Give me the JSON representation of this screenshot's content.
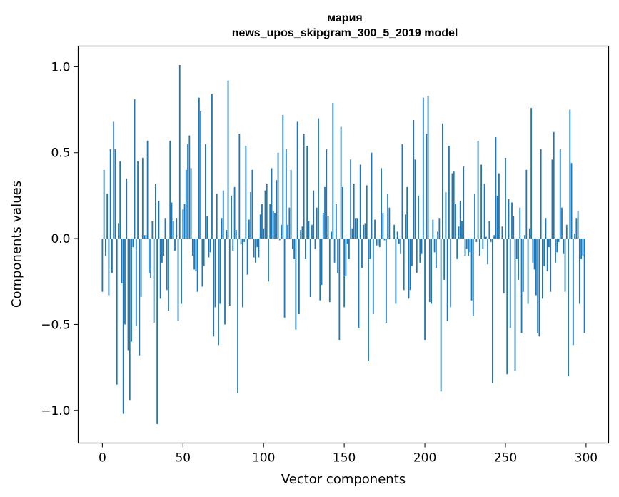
{
  "chart_data": {
    "type": "bar",
    "title": "мария",
    "subtitle": "news_upos_skipgram_300_5_2019 model",
    "xlabel": "Vector components",
    "ylabel": "Components values",
    "xlim": [
      -15,
      314
    ],
    "ylim": [
      -1.19,
      1.12
    ],
    "xticks": [
      0,
      50,
      100,
      150,
      200,
      250,
      300
    ],
    "yticks": [
      -1.0,
      -0.5,
      0.0,
      0.5,
      1.0
    ],
    "ytick_labels": [
      "−1.0",
      "−0.5",
      "0.0",
      "0.5",
      "1.0"
    ],
    "grid": false,
    "bar_color": "#1f77b4",
    "values": [
      -0.31,
      0.4,
      -0.1,
      0.26,
      -0.33,
      0.52,
      -0.2,
      0.68,
      0.52,
      -0.85,
      0.09,
      0.45,
      -0.26,
      -1.02,
      -0.5,
      0.35,
      -0.65,
      -0.94,
      -0.6,
      -0.05,
      0.81,
      -0.51,
      0.45,
      -0.68,
      -0.34,
      0.47,
      0.02,
      0.02,
      0.57,
      -0.2,
      -0.23,
      0.1,
      -0.49,
      0.32,
      -1.08,
      0.22,
      -0.35,
      -0.14,
      -0.1,
      0.12,
      -0.3,
      -0.42,
      0.57,
      0.21,
      0.1,
      -0.07,
      0.12,
      -0.48,
      1.01,
      -0.38,
      0.17,
      0.2,
      0.4,
      0.55,
      0.6,
      0.41,
      -0.1,
      -0.18,
      -0.19,
      -0.31,
      0.82,
      0.74,
      -0.28,
      -0.16,
      0.55,
      0.13,
      -0.11,
      -0.08,
      0.84,
      -0.57,
      -0.4,
      0.26,
      -0.62,
      -0.38,
      0.12,
      0.28,
      -0.5,
      0.05,
      0.92,
      -0.39,
      0.25,
      -0.07,
      0.3,
      0.05,
      -0.9,
      0.61,
      -0.03,
      -0.4,
      -0.02,
      0.54,
      -0.21,
      0.11,
      0.27,
      0.4,
      -0.11,
      -0.14,
      -0.05,
      -0.11,
      0.14,
      0.2,
      0.06,
      0.28,
      0.32,
      -0.25,
      0.2,
      0.41,
      0.16,
      0.15,
      0.34,
      0.5,
      -0.01,
      0.08,
      0.72,
      -0.46,
      0.52,
      0.08,
      0.18,
      0.4,
      -0.06,
      -0.12,
      -0.53,
      0.68,
      -0.44,
      0.05,
      0.07,
      0.61,
      -0.12,
      0.54,
      0.1,
      -0.34,
      0.08,
      0.28,
      -0.06,
      0.18,
      0.7,
      -0.36,
      -0.27,
      0.15,
      0.3,
      0.52,
      0.13,
      -0.37,
      0.04,
      0.79,
      -0.14,
      0.2,
      -0.2,
      -0.59,
      0.65,
      0.3,
      -0.4,
      -0.22,
      -0.03,
      -0.12,
      0.46,
      0.06,
      0.32,
      0.12,
      0.12,
      -0.52,
      0.43,
      -0.17,
      0.08,
      0.09,
      0.31,
      -0.71,
      -0.12,
      0.5,
      -0.44,
      0.11,
      -0.04,
      -0.04,
      -0.05,
      0.41,
      0.15,
      -0.01,
      -0.49,
      0.26,
      0.18,
      0.0,
      0.0,
      0.08,
      -0.38,
      0.04,
      -0.03,
      -0.09,
      0.55,
      -0.3,
      0.14,
      0.3,
      -0.35,
      -0.3,
      -0.16,
      0.69,
      0.46,
      -0.2,
      0.25,
      -0.14,
      -0.09,
      0.82,
      -0.59,
      0.61,
      0.83,
      -0.37,
      -0.38,
      0.11,
      -0.08,
      -0.17,
      0.04,
      0.12,
      -0.89,
      0.67,
      -0.24,
      0.27,
      -0.48,
      0.54,
      -0.4,
      0.38,
      0.39,
      0.2,
      -0.12,
      0.07,
      0.22,
      0.1,
      0.42,
      -0.1,
      -0.06,
      -0.1,
      -0.08,
      -0.36,
      -0.45,
      0.26,
      -0.02,
      0.57,
      -0.1,
      0.43,
      -0.06,
      0.32,
      0.01,
      -0.15,
      0.1,
      -0.02,
      -0.84,
      0.02,
      0.59,
      0.25,
      0.38,
      0.0,
      0.07,
      -0.32,
      0.47,
      -0.79,
      0.23,
      -0.52,
      0.21,
      0.13,
      -0.77,
      -0.12,
      -0.24,
      0.18,
      -0.55,
      -0.31,
      0.02,
      0.4,
      -0.38,
      0.06,
      0.76,
      -0.14,
      -0.18,
      -0.33,
      -0.55,
      -0.57,
      0.52,
      -0.35,
      -0.16,
      0.12,
      -0.19,
      -0.05,
      -0.31,
      0.46,
      0.62,
      -0.14,
      -0.08,
      -0.02,
      0.52,
      0.18,
      -0.09,
      -0.31,
      0.08,
      -0.8,
      0.75,
      0.44,
      -0.62,
      0.03,
      0.12,
      0.16,
      -0.38,
      -0.12,
      -0.1,
      -0.55
    ]
  }
}
